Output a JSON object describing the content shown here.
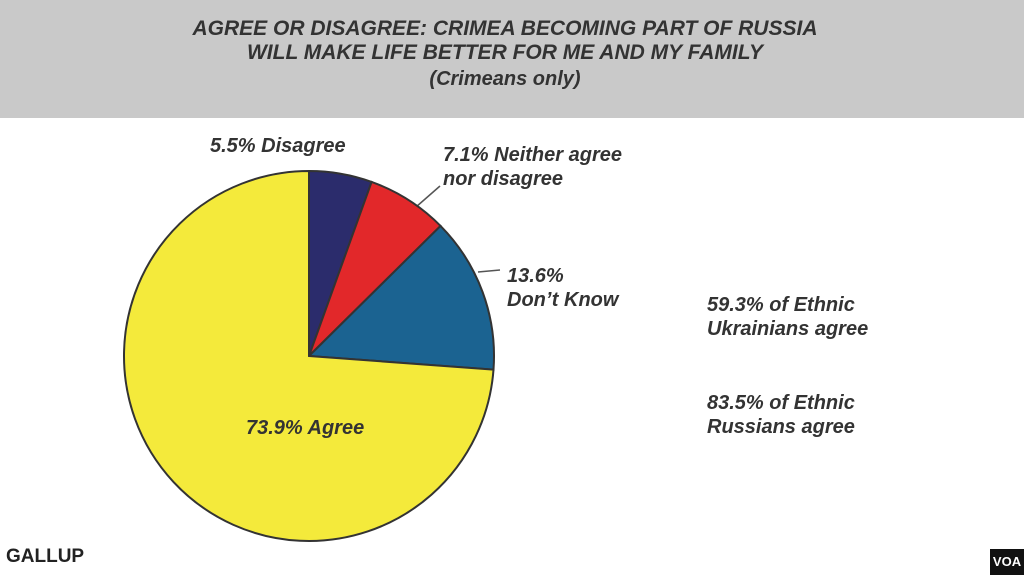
{
  "chart_data": {
    "type": "pie",
    "title": "AGREE OR DISAGREE: CRIMEA BECOMING PART OF RUSSIA\nWILL MAKE LIFE BETTER FOR ME AND MY FAMILY",
    "subtitle": "(Crimeans only)",
    "values": [
      5.5,
      7.1,
      13.6,
      73.9
    ],
    "value_labels": [
      "5.5% Disagree",
      "7.1% Neither agree\nnor disagree",
      "13.6%\nDon’t Know",
      "73.9% Agree"
    ],
    "colors": [
      "#2b2c6c",
      "#e2282a",
      "#1b6391",
      "#f4ea3b"
    ],
    "annotations": [
      "59.3% of Ethnic\nUkrainians agree",
      "83.5% of Ethnic\nRussians agree"
    ],
    "source": "GALLUP",
    "logo": "VOA"
  }
}
